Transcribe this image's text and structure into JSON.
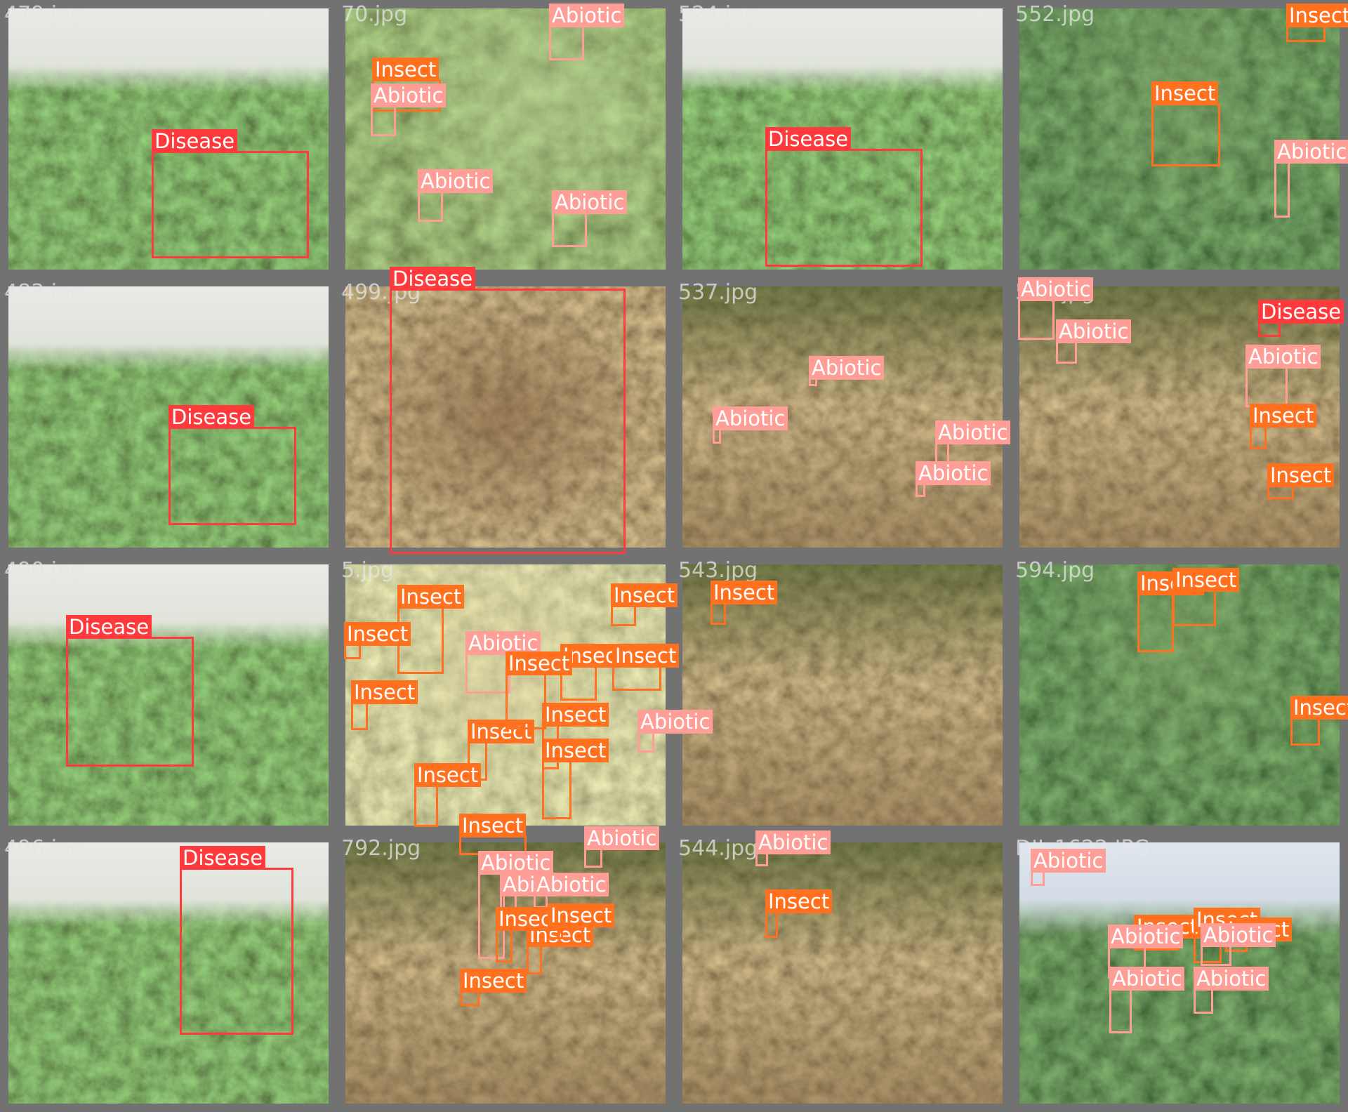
{
  "colors": {
    "Disease": "#ff3a3c",
    "Insect": "#ff701f",
    "Abiotic": "#ff9d97",
    "tile_border": "#727272"
  },
  "tiles": [
    {
      "filename": "479.jpg",
      "scene": "dense-shrub",
      "detections": [
        {
          "label": "Disease",
          "cls": "disease"
        }
      ]
    },
    {
      "filename": "70.jpg",
      "scene": "leafy-closeup",
      "detections": [
        {
          "label": "Abiotic",
          "cls": "abiotic"
        },
        {
          "label": "Insect",
          "cls": "insect"
        },
        {
          "label": "Abiotic",
          "cls": "abiotic"
        },
        {
          "label": "Abiotic",
          "cls": "abiotic"
        },
        {
          "label": "Abiotic",
          "cls": "abiotic"
        }
      ]
    },
    {
      "filename": "524.jpg",
      "scene": "dense-shrub",
      "detections": [
        {
          "label": "Disease",
          "cls": "disease"
        }
      ]
    },
    {
      "filename": "552.jpg",
      "scene": "dark-foliage",
      "detections": [
        {
          "label": "Insect",
          "cls": "insect"
        },
        {
          "label": "Insect",
          "cls": "insect"
        },
        {
          "label": "Abiotic",
          "cls": "abiotic"
        }
      ]
    },
    {
      "filename": "483.jpg",
      "scene": "dense-shrub",
      "detections": [
        {
          "label": "Disease",
          "cls": "disease"
        }
      ]
    },
    {
      "filename": "499.jpg",
      "scene": "brown-closeup",
      "detections": [
        {
          "label": "Disease",
          "cls": "disease"
        }
      ]
    },
    {
      "filename": "537.jpg",
      "scene": "orchard",
      "detections": [
        {
          "label": "Abiotic",
          "cls": "abiotic"
        },
        {
          "label": "Abiotic",
          "cls": "abiotic"
        },
        {
          "label": "Abiotic",
          "cls": "abiotic"
        },
        {
          "label": "Abiotic",
          "cls": "abiotic"
        }
      ]
    },
    {
      "filename": "563.jpg",
      "scene": "orchard",
      "detections": [
        {
          "label": "Abiotic",
          "cls": "abiotic"
        },
        {
          "label": "Abiotic",
          "cls": "abiotic"
        },
        {
          "label": "Disease",
          "cls": "disease"
        },
        {
          "label": "Abiotic",
          "cls": "abiotic"
        },
        {
          "label": "Insect",
          "cls": "insect"
        },
        {
          "label": "Insect",
          "cls": "insect"
        }
      ]
    },
    {
      "filename": "490.jpg",
      "scene": "dense-shrub",
      "detections": [
        {
          "label": "Disease",
          "cls": "disease"
        }
      ]
    },
    {
      "filename": "5.jpg",
      "scene": "pale-leaves",
      "detections": [
        {
          "label": "Insect",
          "cls": "insect"
        },
        {
          "label": "Insect",
          "cls": "insect"
        },
        {
          "label": "Abiotic",
          "cls": "abiotic"
        },
        {
          "label": "Insect",
          "cls": "insect"
        },
        {
          "label": "Insect",
          "cls": "insect"
        },
        {
          "label": "Insect",
          "cls": "insect"
        },
        {
          "label": "Insect",
          "cls": "insect"
        },
        {
          "label": "Insect",
          "cls": "insect"
        },
        {
          "label": "Insect",
          "cls": "insect"
        },
        {
          "label": "Insect",
          "cls": "insect"
        },
        {
          "label": "Abiotic",
          "cls": "abiotic"
        },
        {
          "label": "Insect",
          "cls": "insect"
        },
        {
          "label": "Insect",
          "cls": "insect"
        },
        {
          "label": "Insect",
          "cls": "insect"
        }
      ]
    },
    {
      "filename": "543.jpg",
      "scene": "orchard",
      "detections": [
        {
          "label": "Insect",
          "cls": "insect"
        }
      ]
    },
    {
      "filename": "594.jpg",
      "scene": "dark-foliage",
      "detections": [
        {
          "label": "Insect",
          "cls": "insect"
        },
        {
          "label": "Insect",
          "cls": "insect"
        },
        {
          "label": "Insect",
          "cls": "insect"
        }
      ]
    },
    {
      "filename": "496.jpg",
      "scene": "dense-shrub",
      "detections": [
        {
          "label": "Disease",
          "cls": "disease"
        }
      ]
    },
    {
      "filename": "792.jpg",
      "scene": "orchard",
      "detections": [
        {
          "label": "Abiotic",
          "cls": "abiotic"
        },
        {
          "label": "Abiotic",
          "cls": "abiotic"
        },
        {
          "label": "Abiotic",
          "cls": "abiotic"
        },
        {
          "label": "Insect",
          "cls": "insect"
        },
        {
          "label": "Insect",
          "cls": "insect"
        },
        {
          "label": "Insect",
          "cls": "insect"
        },
        {
          "label": "Insect",
          "cls": "insect"
        },
        {
          "label": "Abiotic",
          "cls": "abiotic"
        }
      ]
    },
    {
      "filename": "544.jpg",
      "scene": "orchard",
      "detections": [
        {
          "label": "Abiotic",
          "cls": "abiotic"
        },
        {
          "label": "Insect",
          "cls": "insect"
        }
      ]
    },
    {
      "filename": "DJI_1622.JPG",
      "scene": "sky-canopy",
      "detections": [
        {
          "label": "Abiotic",
          "cls": "abiotic"
        },
        {
          "label": "Insect",
          "cls": "insect"
        },
        {
          "label": "Insect",
          "cls": "insect"
        },
        {
          "label": "Insect",
          "cls": "insect"
        },
        {
          "label": "Abiotic",
          "cls": "abiotic"
        },
        {
          "label": "Abiotic",
          "cls": "abiotic"
        },
        {
          "label": "Abiotic",
          "cls": "abiotic"
        },
        {
          "label": "Abiotic",
          "cls": "abiotic"
        }
      ]
    }
  ]
}
